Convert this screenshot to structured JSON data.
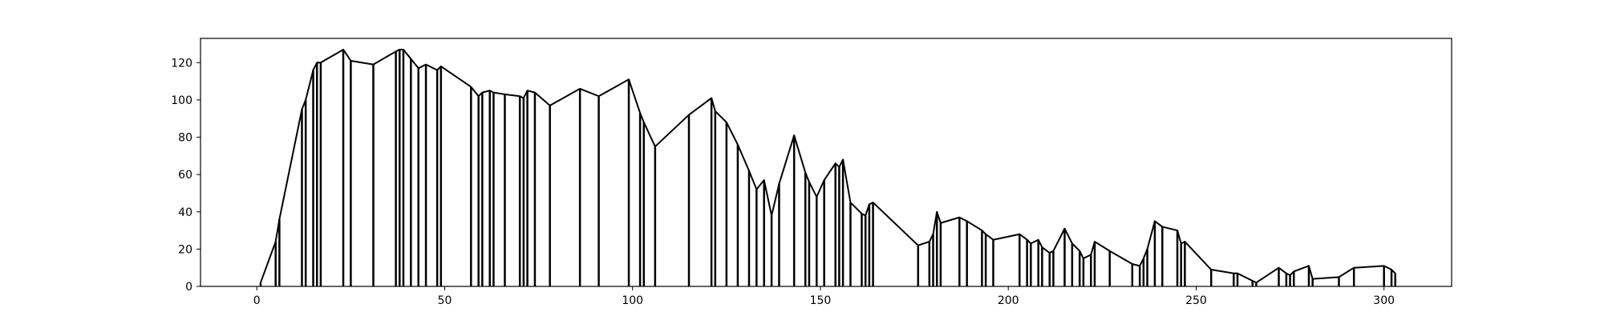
{
  "chart_data": {
    "type": "line",
    "title": "",
    "xlabel": "",
    "ylabel": "",
    "xlim": [
      -15,
      318
    ],
    "ylim": [
      0,
      133
    ],
    "grid": false,
    "x_ticks": [
      0,
      50,
      100,
      150,
      200,
      250,
      300
    ],
    "y_ticks": [
      0,
      20,
      40,
      60,
      80,
      100,
      120
    ],
    "vertical_drop_lines": true,
    "series": [
      {
        "x": [
          1,
          5,
          6,
          12,
          13,
          15,
          16,
          17,
          23,
          25,
          31,
          37,
          38,
          39,
          41,
          43,
          45,
          48,
          49,
          57,
          59,
          60,
          62,
          63,
          66,
          70,
          71,
          72,
          74,
          78,
          86,
          91,
          99,
          102,
          103,
          106,
          115,
          121,
          122,
          125,
          128,
          131,
          133,
          135,
          137,
          139,
          143,
          146,
          147,
          149,
          151,
          154,
          155,
          156,
          158,
          161,
          162,
          163,
          164,
          176,
          179,
          180,
          181,
          182,
          187,
          189,
          193,
          194,
          196,
          203,
          205,
          206,
          208,
          209,
          211,
          212,
          215,
          217,
          219,
          220,
          222,
          223,
          227,
          233,
          235,
          236,
          237,
          239,
          241,
          245,
          246,
          247,
          254,
          260,
          261,
          265,
          266,
          272,
          274,
          275,
          276,
          280,
          281,
          288,
          292,
          300,
          302,
          303
        ],
        "values": [
          2,
          24,
          36,
          95,
          100,
          116,
          120,
          120,
          127,
          121,
          119,
          126,
          127,
          127,
          122,
          117,
          119,
          116,
          118,
          107,
          102,
          104,
          105,
          104,
          103,
          102,
          101,
          105,
          104,
          97,
          106,
          102,
          111,
          93,
          88,
          75,
          92,
          101,
          94,
          88,
          76,
          62,
          52,
          57,
          38,
          55,
          81,
          61,
          56,
          48,
          57,
          66,
          64,
          68,
          45,
          39,
          38,
          44,
          45,
          22,
          24,
          28,
          40,
          34,
          37,
          35,
          30,
          28,
          25,
          28,
          25,
          23,
          25,
          21,
          18,
          19,
          31,
          23,
          19,
          15,
          17,
          24,
          19,
          12,
          11,
          15,
          20,
          35,
          32,
          30,
          23,
          24,
          9,
          7,
          7,
          3,
          2,
          10,
          7,
          6,
          8,
          11,
          4,
          5,
          10,
          11,
          9,
          7
        ]
      }
    ]
  }
}
